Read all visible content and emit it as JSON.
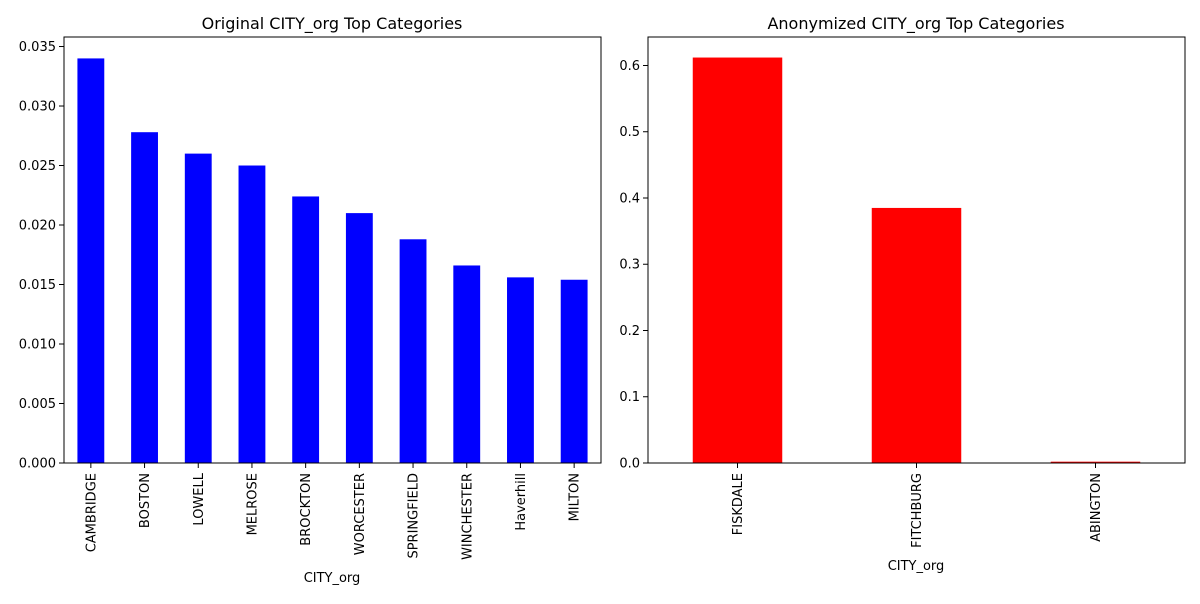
{
  "chart_data": [
    {
      "type": "bar",
      "title": "Original CITY_org Top Categories",
      "xlabel": "CITY_org",
      "ylabel": "",
      "categories": [
        "CAMBRIDGE",
        "BOSTON",
        "LOWELL",
        "MELROSE",
        "BROCKTON",
        "WORCESTER",
        "SPRINGFIELD",
        "WINCHESTER",
        "Haverhill",
        "MILTON"
      ],
      "values": [
        0.034,
        0.0278,
        0.026,
        0.025,
        0.0224,
        0.021,
        0.0188,
        0.0166,
        0.0156,
        0.0154
      ],
      "ylim": [
        0,
        0.0358
      ],
      "yticks": [
        0.0,
        0.005,
        0.01,
        0.015,
        0.02,
        0.025,
        0.03,
        0.035
      ],
      "ytick_labels": [
        "0.000",
        "0.005",
        "0.010",
        "0.015",
        "0.020",
        "0.025",
        "0.030",
        "0.035"
      ],
      "color": "#0000ff",
      "grid": false
    },
    {
      "type": "bar",
      "title": "Anonymized CITY_org Top Categories",
      "xlabel": "CITY_org",
      "ylabel": "",
      "categories": [
        "FISKDALE",
        "FITCHBURG",
        "ABINGTON"
      ],
      "values": [
        0.612,
        0.385,
        0.002
      ],
      "ylim": [
        0,
        0.643
      ],
      "yticks": [
        0.0,
        0.1,
        0.2,
        0.3,
        0.4,
        0.5,
        0.6
      ],
      "ytick_labels": [
        "0.0",
        "0.1",
        "0.2",
        "0.3",
        "0.4",
        "0.5",
        "0.6"
      ],
      "color": "#ff0000",
      "grid": false
    }
  ]
}
